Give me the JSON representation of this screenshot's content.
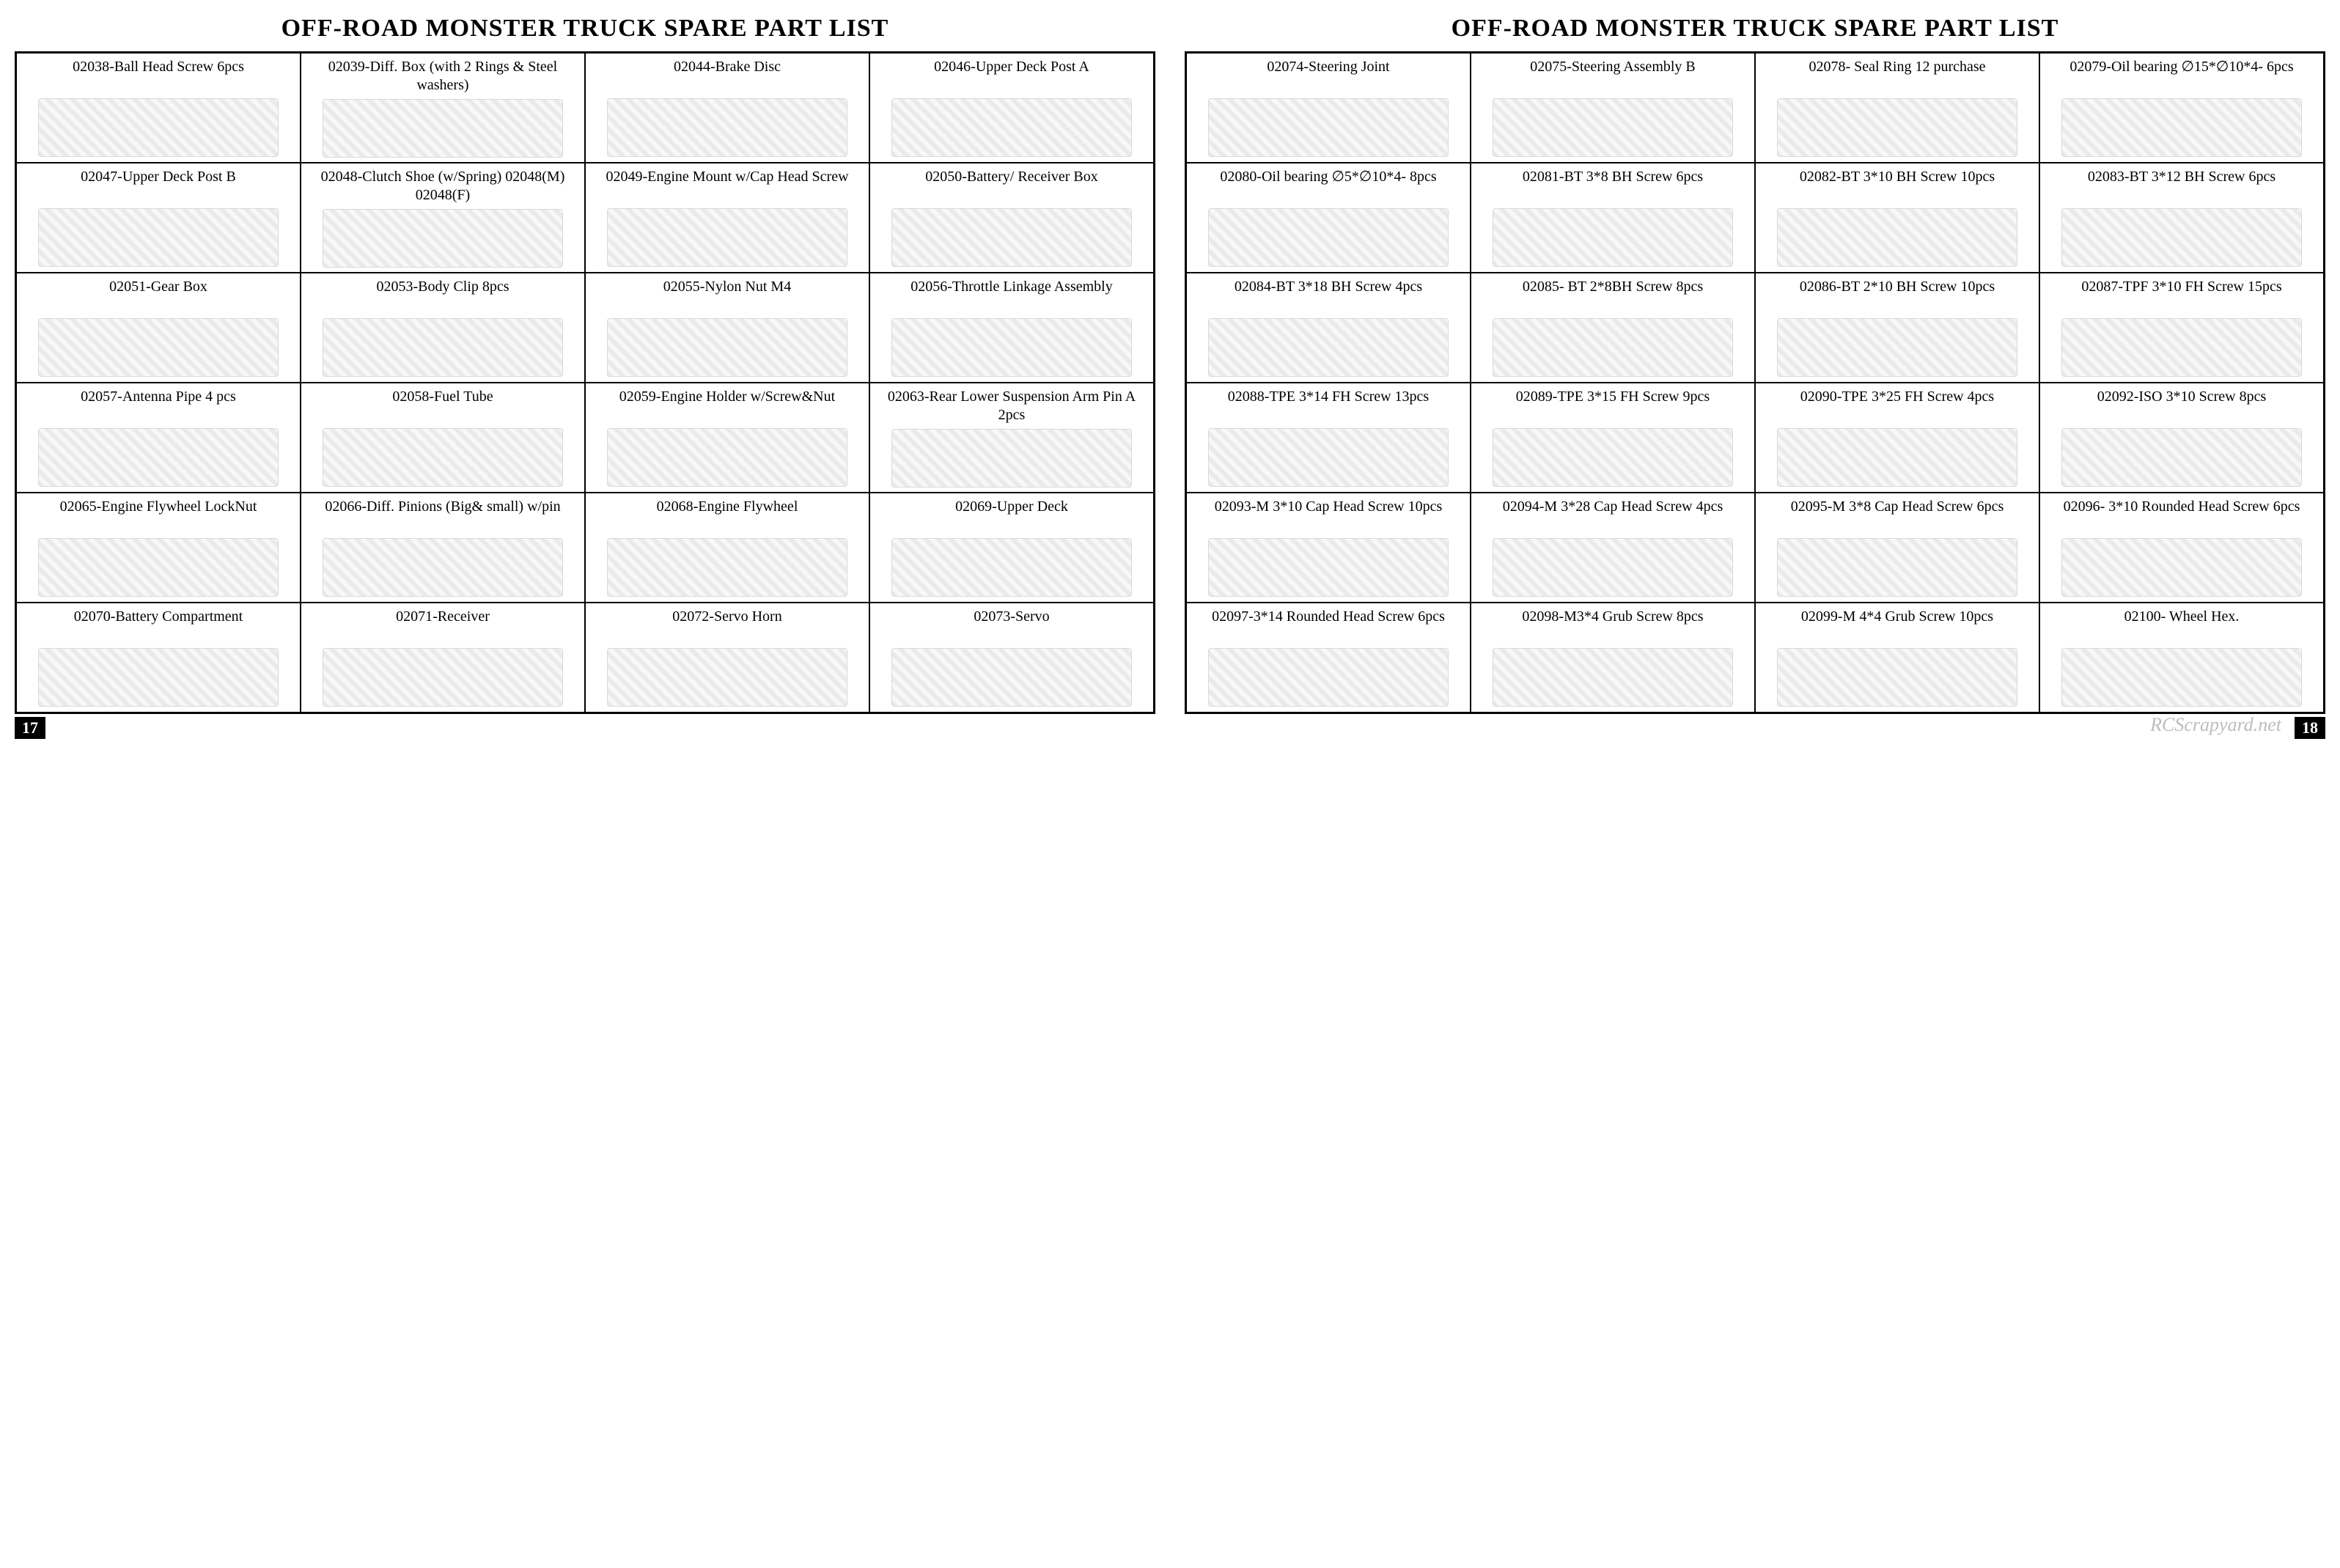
{
  "title": "OFF-ROAD MONSTER TRUCK SPARE PART LIST",
  "watermark": "RCScrapyard.net",
  "pages": [
    {
      "number": "17",
      "numSide": "left",
      "parts": [
        {
          "label": "02038-Ball Head Screw 6pcs"
        },
        {
          "label": "02039-Diff. Box (with 2 Rings & Steel washers)"
        },
        {
          "label": "02044-Brake Disc"
        },
        {
          "label": "02046-Upper Deck Post    A"
        },
        {
          "label": "02047-Upper Deck Post    B"
        },
        {
          "label": "02048-Clutch Shoe (w/Spring) 02048(M) 02048(F)"
        },
        {
          "label": "02049-Engine Mount w/Cap Head Screw"
        },
        {
          "label": "02050-Battery/ Receiver Box"
        },
        {
          "label": "02051-Gear Box"
        },
        {
          "label": "02053-Body Clip  8pcs"
        },
        {
          "label": "02055-Nylon Nut  M4"
        },
        {
          "label": "02056-Throttle Linkage Assembly"
        },
        {
          "label": "02057-Antenna Pipe 4 pcs"
        },
        {
          "label": "02058-Fuel Tube"
        },
        {
          "label": "02059-Engine Holder w/Screw&Nut"
        },
        {
          "label": "02063-Rear Lower Suspension Arm Pin A  2pcs"
        },
        {
          "label": "02065-Engine Flywheel LockNut"
        },
        {
          "label": "02066-Diff. Pinions (Big& small) w/pin"
        },
        {
          "label": "02068-Engine Flywheel"
        },
        {
          "label": "02069-Upper Deck"
        },
        {
          "label": "02070-Battery Compartment"
        },
        {
          "label": "02071-Receiver"
        },
        {
          "label": "02072-Servo Horn"
        },
        {
          "label": "02073-Servo"
        }
      ]
    },
    {
      "number": "18",
      "numSide": "right",
      "parts": [
        {
          "label": "02074-Steering Joint"
        },
        {
          "label": "02075-Steering Assembly B"
        },
        {
          "label": "02078- Seal Ring 12 purchase"
        },
        {
          "label": "02079-Oil bearing ∅15*∅10*4- 6pcs"
        },
        {
          "label": "02080-Oil bearing ∅5*∅10*4- 8pcs"
        },
        {
          "label": "02081-BT 3*8 BH Screw 6pcs"
        },
        {
          "label": "02082-BT 3*10 BH Screw 10pcs"
        },
        {
          "label": "02083-BT 3*12 BH Screw 6pcs"
        },
        {
          "label": "02084-BT 3*18 BH Screw 4pcs"
        },
        {
          "label": "02085- BT 2*8BH Screw 8pcs"
        },
        {
          "label": "02086-BT  2*10 BH Screw 10pcs"
        },
        {
          "label": "02087-TPF 3*10 FH Screw 15pcs"
        },
        {
          "label": "02088-TPE 3*14 FH Screw 13pcs"
        },
        {
          "label": "02089-TPE 3*15 FH Screw 9pcs"
        },
        {
          "label": "02090-TPE 3*25 FH Screw 4pcs"
        },
        {
          "label": "02092-ISO 3*10 Screw 8pcs"
        },
        {
          "label": "02093-M 3*10 Cap Head Screw 10pcs"
        },
        {
          "label": "02094-M 3*28 Cap Head Screw 4pcs"
        },
        {
          "label": "02095-M 3*8 Cap Head Screw 6pcs"
        },
        {
          "label": "02096- 3*10  Rounded Head Screw 6pcs"
        },
        {
          "label": "02097-3*14 Rounded Head Screw 6pcs"
        },
        {
          "label": "02098-M3*4 Grub Screw 8pcs"
        },
        {
          "label": "02099-M 4*4 Grub Screw 10pcs"
        },
        {
          "label": "02100- Wheel Hex."
        }
      ]
    }
  ]
}
